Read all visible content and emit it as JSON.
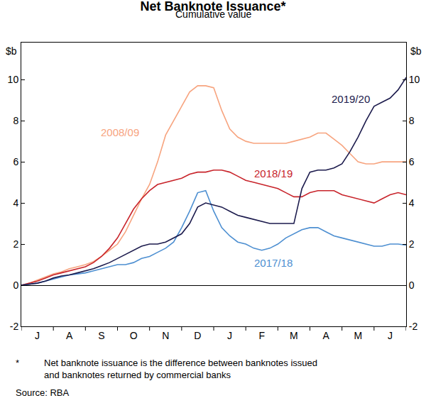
{
  "chart_data": {
    "type": "line",
    "title": "Net Banknote Issuance*",
    "subtitle": "Cumulative value",
    "y_label": "$b",
    "categories": [
      null,
      null,
      "J",
      null,
      null,
      null,
      "A",
      null,
      null,
      null,
      "S",
      null,
      null,
      null,
      "O",
      null,
      null,
      null,
      "N",
      null,
      null,
      null,
      "D",
      null,
      null,
      null,
      "J",
      null,
      null,
      null,
      "F",
      null,
      null,
      null,
      "M",
      null,
      null,
      null,
      "A",
      null,
      null,
      null,
      "M",
      null,
      null,
      null,
      "J",
      null,
      null
    ],
    "series": [
      {
        "name": "2008/09",
        "color": "#F7A47F",
        "values": [
          0,
          0.1,
          0.25,
          0.4,
          0.55,
          0.65,
          0.8,
          0.9,
          1.0,
          1.15,
          1.4,
          1.7,
          2.0,
          2.6,
          3.4,
          4.2,
          4.9,
          6.0,
          7.3,
          8.0,
          8.7,
          9.4,
          9.7,
          9.7,
          9.6,
          8.5,
          7.6,
          7.2,
          7.0,
          6.9,
          6.9,
          6.9,
          6.9,
          6.9,
          7.0,
          7.1,
          7.2,
          7.4,
          7.4,
          7.1,
          6.8,
          6.4,
          6.0,
          5.9,
          5.9,
          6.0,
          6.0,
          6.0,
          6.0
        ]
      },
      {
        "name": "2018/19",
        "color": "#C8242B",
        "values": [
          0,
          0.1,
          0.2,
          0.35,
          0.5,
          0.6,
          0.7,
          0.8,
          0.9,
          1.1,
          1.4,
          1.8,
          2.3,
          3.0,
          3.7,
          4.2,
          4.6,
          4.9,
          5.0,
          5.1,
          5.2,
          5.4,
          5.5,
          5.5,
          5.6,
          5.6,
          5.5,
          5.3,
          5.1,
          5.0,
          4.9,
          4.8,
          4.7,
          4.5,
          4.3,
          4.3,
          4.5,
          4.6,
          4.6,
          4.6,
          4.4,
          4.3,
          4.2,
          4.1,
          4.0,
          4.2,
          4.4,
          4.5,
          4.4
        ]
      },
      {
        "name": "2017/18",
        "color": "#4D8FD1",
        "values": [
          0,
          0.05,
          0.1,
          0.2,
          0.3,
          0.4,
          0.5,
          0.55,
          0.6,
          0.7,
          0.8,
          0.9,
          1.0,
          1.0,
          1.1,
          1.3,
          1.4,
          1.6,
          1.8,
          2.1,
          2.8,
          3.6,
          4.5,
          4.6,
          3.6,
          2.8,
          2.4,
          2.1,
          2.0,
          1.8,
          1.7,
          1.8,
          2.0,
          2.3,
          2.5,
          2.7,
          2.8,
          2.8,
          2.6,
          2.4,
          2.3,
          2.2,
          2.1,
          2.0,
          1.9,
          1.9,
          2.0,
          2.0,
          1.95
        ]
      },
      {
        "name": "2019/20",
        "color": "#1C1B4D",
        "values": [
          0,
          0.05,
          0.1,
          0.2,
          0.35,
          0.45,
          0.5,
          0.6,
          0.7,
          0.8,
          0.95,
          1.1,
          1.3,
          1.5,
          1.7,
          1.9,
          2.0,
          2.0,
          2.1,
          2.3,
          2.5,
          3.0,
          3.8,
          4.0,
          3.9,
          3.8,
          3.6,
          3.4,
          3.3,
          3.2,
          3.1,
          3.0,
          3.0,
          3.0,
          3.0,
          4.7,
          5.5,
          5.6,
          5.6,
          5.7,
          5.9,
          6.5,
          7.2,
          8.0,
          8.7,
          8.9,
          9.1,
          9.5,
          10.1
        ]
      }
    ],
    "ylim": [
      -2,
      11.8
    ],
    "yticks": [
      -2,
      0,
      2,
      4,
      6,
      8,
      10
    ],
    "grid": false,
    "footnote": {
      "marker": "*",
      "lines": [
        "Net banknote issuance is the difference between banknotes issued",
        "and banknotes returned by commercial banks"
      ]
    },
    "source": "Source: RBA"
  }
}
